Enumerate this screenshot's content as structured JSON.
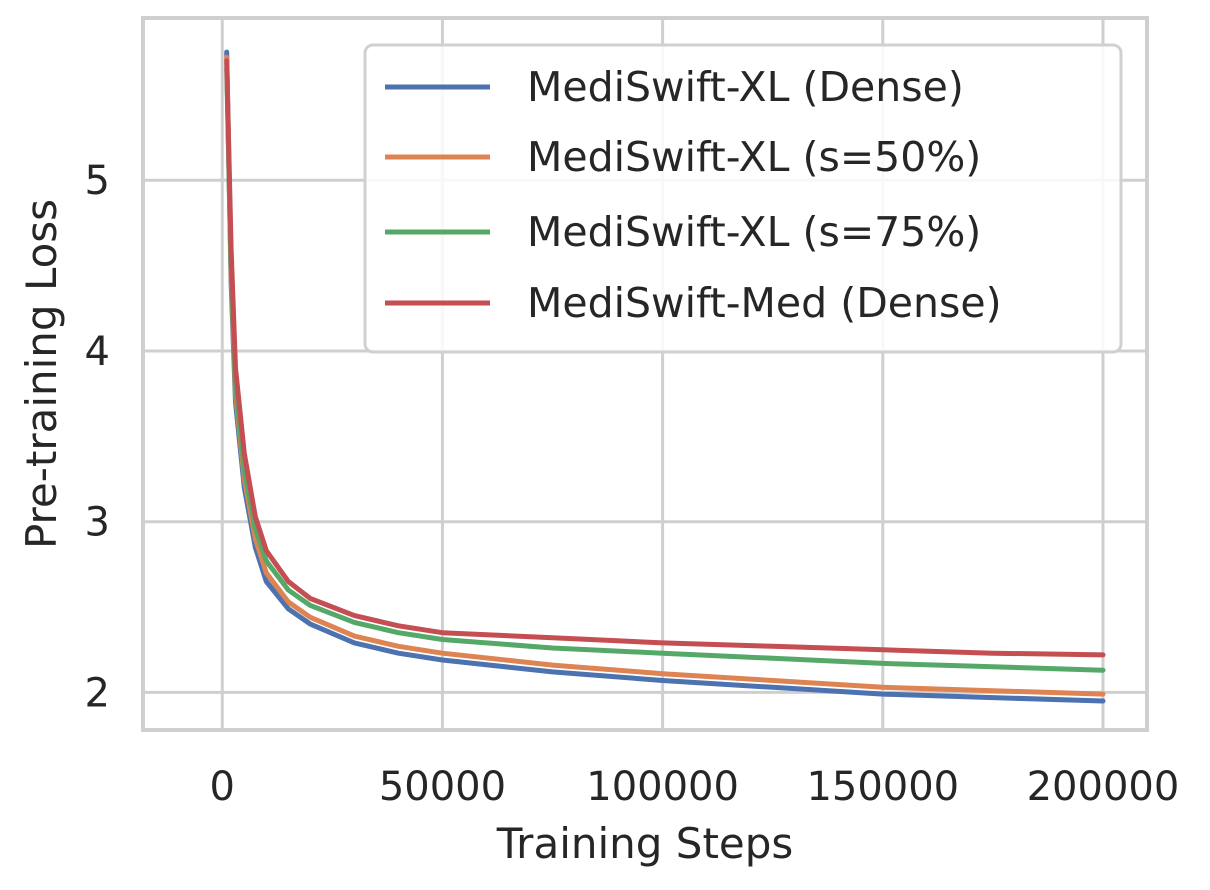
{
  "chart_data": {
    "type": "line",
    "xlabel": "Training Steps",
    "ylabel": "Pre-training Loss",
    "xlim": [
      -18000,
      210000
    ],
    "ylim": [
      1.78,
      5.95
    ],
    "xticks": [
      0,
      50000,
      100000,
      150000,
      200000
    ],
    "yticks": [
      2,
      3,
      4,
      5
    ],
    "grid": true,
    "legend_position": "top-right",
    "series": [
      {
        "name": "MediSwift-XL (Dense)",
        "color": "#4c72b0",
        "x": [
          1000,
          2000,
          3000,
          5000,
          7500,
          10000,
          15000,
          20000,
          30000,
          40000,
          50000,
          75000,
          100000,
          125000,
          150000,
          175000,
          200000
        ],
        "y": [
          5.75,
          4.4,
          3.7,
          3.2,
          2.85,
          2.65,
          2.49,
          2.4,
          2.29,
          2.23,
          2.19,
          2.12,
          2.07,
          2.03,
          1.99,
          1.97,
          1.95
        ]
      },
      {
        "name": "MediSwift-XL (s=50%)",
        "color": "#dd8452",
        "x": [
          1000,
          2000,
          3000,
          5000,
          7500,
          10000,
          15000,
          20000,
          30000,
          40000,
          50000,
          75000,
          100000,
          125000,
          150000,
          175000,
          200000
        ],
        "y": [
          5.72,
          4.45,
          3.75,
          3.25,
          2.9,
          2.7,
          2.53,
          2.44,
          2.33,
          2.27,
          2.23,
          2.16,
          2.11,
          2.07,
          2.03,
          2.01,
          1.99
        ]
      },
      {
        "name": "MediSwift-XL (s=75%)",
        "color": "#55a868",
        "x": [
          1000,
          2000,
          3000,
          5000,
          7500,
          10000,
          15000,
          20000,
          30000,
          40000,
          50000,
          75000,
          100000,
          125000,
          150000,
          175000,
          200000
        ],
        "y": [
          5.65,
          4.5,
          3.8,
          3.3,
          2.96,
          2.77,
          2.6,
          2.51,
          2.41,
          2.35,
          2.31,
          2.26,
          2.23,
          2.2,
          2.17,
          2.15,
          2.13
        ]
      },
      {
        "name": "MediSwift-Med (Dense)",
        "color": "#c44e52",
        "x": [
          1000,
          2000,
          3000,
          5000,
          7500,
          10000,
          15000,
          20000,
          30000,
          40000,
          50000,
          75000,
          100000,
          125000,
          150000,
          175000,
          200000
        ],
        "y": [
          5.7,
          4.6,
          3.9,
          3.4,
          3.03,
          2.83,
          2.65,
          2.55,
          2.45,
          2.39,
          2.35,
          2.32,
          2.29,
          2.27,
          2.25,
          2.23,
          2.22
        ]
      }
    ]
  }
}
